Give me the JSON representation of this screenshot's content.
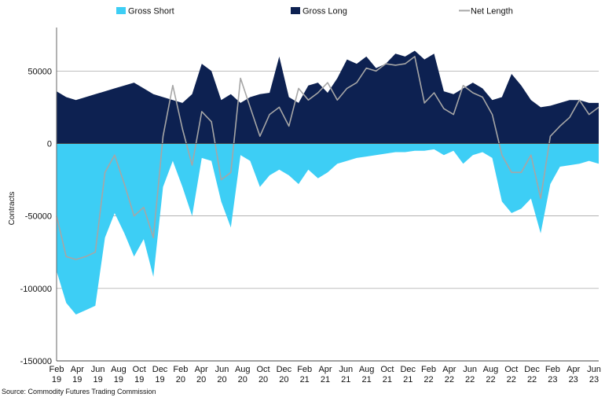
{
  "chart_data": {
    "type": "area",
    "ylabel": "Contracts",
    "ylim": [
      -150000,
      80000
    ],
    "yticks": [
      -150000,
      -100000,
      -50000,
      0,
      50000
    ],
    "grid": "horizontal",
    "legend_position": "top",
    "xlabels": [
      {
        "m": "Feb",
        "y": "19"
      },
      {
        "m": "Apr",
        "y": "19"
      },
      {
        "m": "Jun",
        "y": "19"
      },
      {
        "m": "Aug",
        "y": "19"
      },
      {
        "m": "Oct",
        "y": "19"
      },
      {
        "m": "Dec",
        "y": "19"
      },
      {
        "m": "Feb",
        "y": "20"
      },
      {
        "m": "Apr",
        "y": "20"
      },
      {
        "m": "Jun",
        "y": "20"
      },
      {
        "m": "Aug",
        "y": "20"
      },
      {
        "m": "Oct",
        "y": "20"
      },
      {
        "m": "Dec",
        "y": "20"
      },
      {
        "m": "Feb",
        "y": "21"
      },
      {
        "m": "Apr",
        "y": "21"
      },
      {
        "m": "Jun",
        "y": "21"
      },
      {
        "m": "Aug",
        "y": "21"
      },
      {
        "m": "Oct",
        "y": "21"
      },
      {
        "m": "Dec",
        "y": "21"
      },
      {
        "m": "Feb",
        "y": "22"
      },
      {
        "m": "Apr",
        "y": "22"
      },
      {
        "m": "Jun",
        "y": "22"
      },
      {
        "m": "Aug",
        "y": "22"
      },
      {
        "m": "Oct",
        "y": "22"
      },
      {
        "m": "Dec",
        "y": "22"
      },
      {
        "m": "Feb",
        "y": "23"
      },
      {
        "m": "Apr",
        "y": "23"
      },
      {
        "m": "Jun",
        "y": "23"
      }
    ],
    "x_start": "2019-02",
    "x_step_months": 1,
    "series": [
      {
        "name": "Gross Short",
        "color": "#3dcef5",
        "style": "area",
        "values": [
          -88000,
          -110000,
          -118000,
          -115000,
          -112000,
          -65000,
          -48000,
          -62000,
          -78000,
          -66000,
          -92000,
          -30000,
          -12000,
          -30000,
          -50000,
          -10000,
          -12000,
          -40000,
          -58000,
          -8000,
          -12000,
          -30000,
          -22000,
          -18000,
          -22000,
          -28000,
          -18000,
          -24000,
          -20000,
          -14000,
          -12000,
          -10000,
          -9000,
          -8000,
          -7000,
          -6000,
          -6000,
          -5000,
          -5000,
          -4000,
          -8000,
          -5000,
          -14000,
          -8000,
          -6000,
          -10000,
          -40000,
          -48000,
          -45000,
          -38000,
          -62000,
          -28000,
          -16000,
          -15000,
          -14000,
          -12000,
          -14000
        ]
      },
      {
        "name": "Gross Long",
        "color": "#0d2151",
        "style": "area",
        "values": [
          36000,
          32000,
          30000,
          32000,
          34000,
          36000,
          38000,
          40000,
          42000,
          38000,
          34000,
          32000,
          30000,
          28000,
          34000,
          55000,
          50000,
          30000,
          34000,
          28000,
          32000,
          34000,
          35000,
          60000,
          32000,
          28000,
          40000,
          42000,
          35000,
          45000,
          58000,
          55000,
          60000,
          52000,
          55000,
          62000,
          60000,
          64000,
          58000,
          62000,
          36000,
          34000,
          38000,
          42000,
          38000,
          30000,
          32000,
          48000,
          40000,
          30000,
          25000,
          26000,
          28000,
          30000,
          30000,
          28000,
          28000
        ]
      },
      {
        "name": "Net Length",
        "color": "#a6a6a6",
        "style": "line",
        "values": [
          -50000,
          -78000,
          -80000,
          -78000,
          -75000,
          -20000,
          -8000,
          -28000,
          -50000,
          -44000,
          -65000,
          5000,
          40000,
          10000,
          -15000,
          22000,
          15000,
          -25000,
          -20000,
          45000,
          25000,
          5000,
          20000,
          25000,
          12000,
          38000,
          30000,
          35000,
          42000,
          30000,
          38000,
          42000,
          52000,
          50000,
          55000,
          54000,
          55000,
          60000,
          28000,
          35000,
          24000,
          20000,
          40000,
          35000,
          32000,
          20000,
          -8000,
          -20000,
          -20000,
          -8000,
          -38000,
          5000,
          12000,
          18000,
          30000,
          20000,
          25000
        ]
      }
    ]
  },
  "source_note": "Source: Commodity Futures Trading Commission"
}
